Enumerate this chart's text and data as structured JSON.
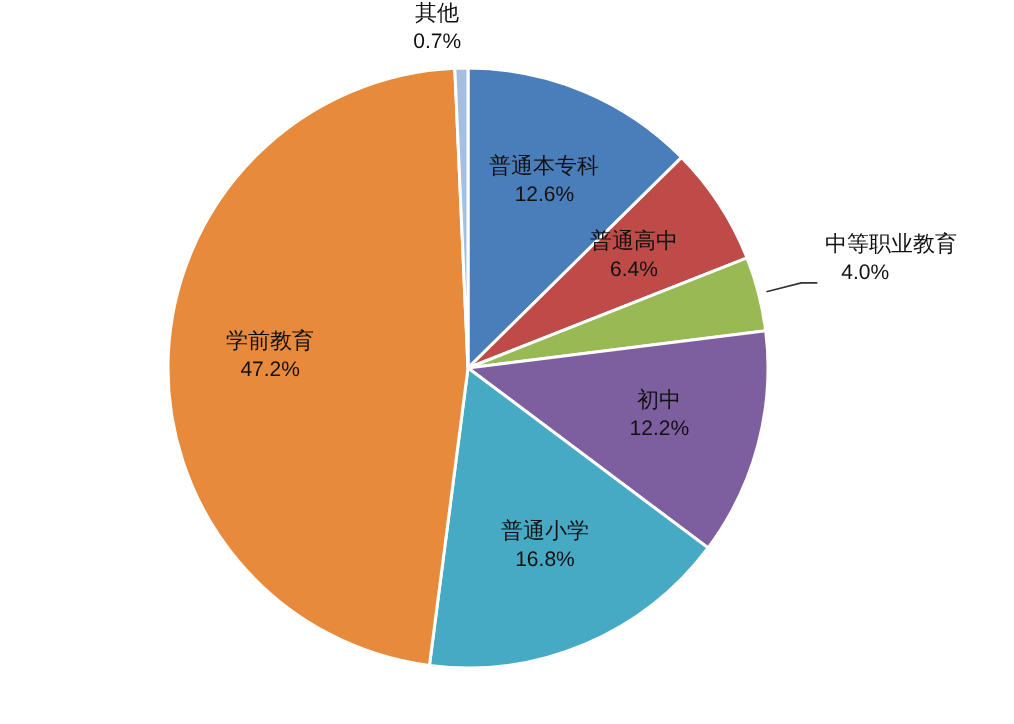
{
  "chart_data": {
    "type": "pie",
    "categories": [
      "普通本专科",
      "普通高中",
      "中等职业教育",
      "初中",
      "普通小学",
      "学前教育",
      "其他"
    ],
    "values": [
      12.6,
      6.4,
      4.0,
      12.2,
      16.8,
      47.2,
      0.7
    ],
    "colors": [
      "#4a7ebb",
      "#be4b48",
      "#98b954",
      "#7d5fa0",
      "#46aac5",
      "#e88a3c",
      "#a5bfe0"
    ],
    "value_labels": [
      "12.6%",
      "6.4%",
      "4.0%",
      "12.2%",
      "16.8%",
      "47.2%",
      "0.7%"
    ],
    "legend": false
  }
}
